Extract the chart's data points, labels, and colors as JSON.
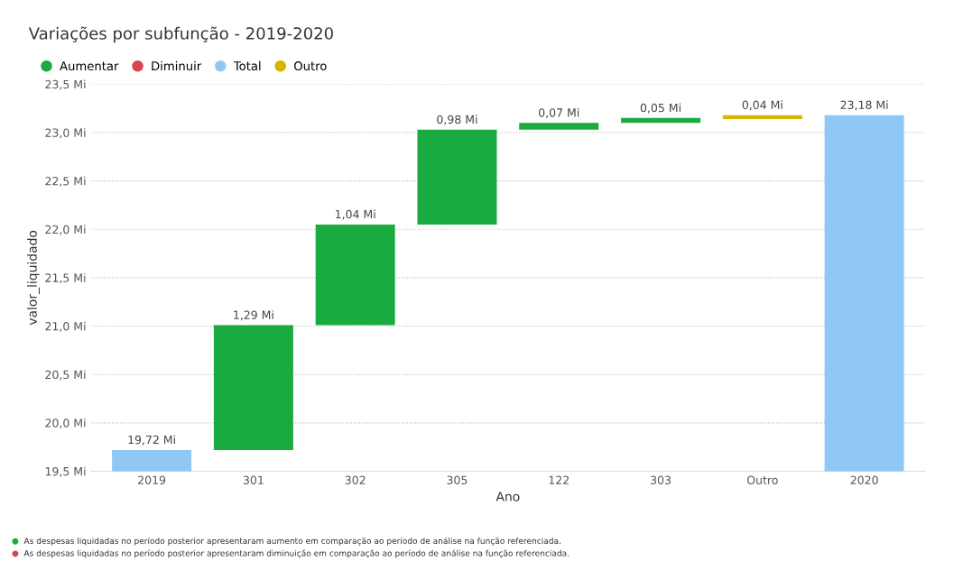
{
  "chart_data": {
    "type": "bar",
    "title": "Variações por subfunção - 2019-2020",
    "xlabel": "Ano",
    "ylabel": "valor_liquidado",
    "categories": [
      "2019",
      "301",
      "302",
      "305",
      "122",
      "303",
      "Outro",
      "2020"
    ],
    "series": [
      {
        "name": "Aumentar",
        "color": "#1aab40",
        "values": [
          null,
          1.29,
          1.04,
          0.98,
          0.07,
          0.05,
          null,
          null
        ],
        "base": [
          null,
          19.72,
          21.01,
          22.05,
          23.03,
          23.1,
          null,
          null
        ],
        "value_labels": [
          null,
          "1,29 Mi",
          "1,04 Mi",
          "0,98 Mi",
          "0,07 Mi",
          "0,05 Mi",
          null,
          null
        ]
      },
      {
        "name": "Diminuir",
        "color": "#d64550",
        "values": [
          null,
          null,
          null,
          null,
          null,
          null,
          null,
          null
        ]
      },
      {
        "name": "Total",
        "color": "#8fc8f5",
        "values": [
          19.72,
          null,
          null,
          null,
          null,
          null,
          null,
          23.18
        ],
        "base": [
          0,
          null,
          null,
          null,
          null,
          null,
          null,
          0
        ],
        "value_labels": [
          "19,72 Mi",
          null,
          null,
          null,
          null,
          null,
          null,
          "23,18 Mi"
        ]
      },
      {
        "name": "Outro",
        "color": "#d9b300",
        "values": [
          null,
          null,
          null,
          null,
          null,
          null,
          0.04,
          null
        ],
        "base": [
          null,
          null,
          null,
          null,
          null,
          null,
          23.14,
          null
        ],
        "value_labels": [
          null,
          null,
          null,
          null,
          null,
          null,
          "0,04 Mi",
          null
        ]
      }
    ],
    "ylim": [
      19.5,
      23.5
    ],
    "yticks": [
      {
        "value": 19.5,
        "label": "19,5 Mi"
      },
      {
        "value": 20,
        "label": "20,0 Mi"
      },
      {
        "value": 20.5,
        "label": "20,5 Mi"
      },
      {
        "value": 21,
        "label": "21,0 Mi"
      },
      {
        "value": 21.5,
        "label": "21,5 Mi"
      },
      {
        "value": 22,
        "label": "22,0 Mi"
      },
      {
        "value": 22.5,
        "label": "22,5 Mi"
      },
      {
        "value": 23,
        "label": "23,0 Mi"
      },
      {
        "value": 23.5,
        "label": "23,5 Mi"
      }
    ],
    "grid": "y",
    "legend": "top left",
    "annotations": [
      "As despesas liquidadas no período posterior apresentaram aumento em comparação ao período de análise na função referenciada.",
      "As despesas liquidadas no período posterior apresentaram diminuição em comparação ao período de análise na função referenciada."
    ]
  }
}
